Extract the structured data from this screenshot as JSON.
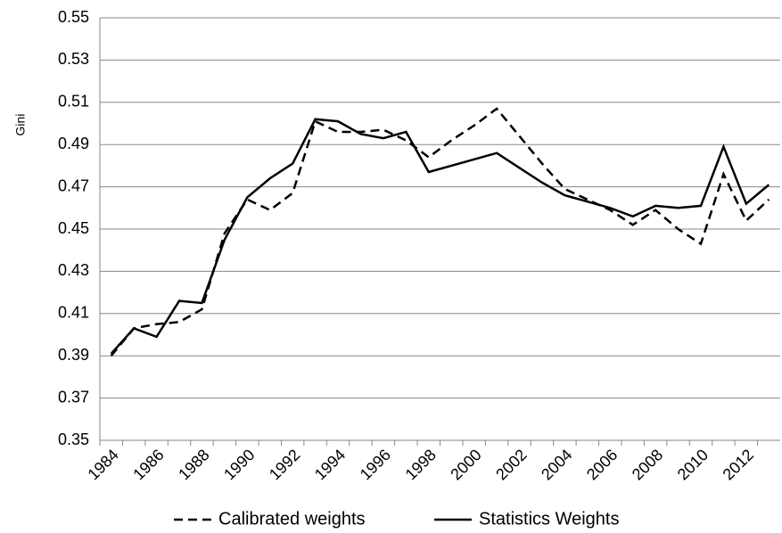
{
  "chart_data": {
    "type": "line",
    "y_label": "Gini",
    "categories": [
      "1984",
      null,
      "1986",
      null,
      "1988",
      null,
      "1990",
      null,
      "1992",
      null,
      "1994",
      null,
      "1996",
      null,
      "1998",
      null,
      "2000",
      null,
      "2002",
      null,
      "2004",
      null,
      "2006",
      null,
      "2008",
      null,
      "2010",
      null,
      "2012",
      null
    ],
    "series": [
      {
        "name": "Calibrated weights",
        "color": "#000000",
        "dash": true,
        "values": [
          0.39,
          0.403,
          0.405,
          0.406,
          0.412,
          0.448,
          0.464,
          0.459,
          0.467,
          0.501,
          0.496,
          0.496,
          0.497,
          0.492,
          0.484,
          0.492,
          0.499,
          0.507,
          0.494,
          0.481,
          0.469,
          0.464,
          0.459,
          0.452,
          0.459,
          0.45,
          0.443,
          0.476,
          0.454,
          0.464
        ]
      },
      {
        "name": "Statistics Weights",
        "color": "#000000",
        "dash": false,
        "values": [
          0.391,
          0.403,
          0.399,
          0.416,
          0.415,
          0.445,
          0.465,
          0.474,
          0.481,
          0.502,
          0.501,
          0.495,
          0.493,
          0.496,
          0.477,
          0.48,
          0.483,
          0.486,
          0.479,
          0.472,
          0.466,
          0.463,
          0.46,
          0.456,
          0.461,
          0.46,
          0.461,
          0.489,
          0.462,
          0.471
        ]
      }
    ],
    "ylim": [
      0.35,
      0.55
    ],
    "yticks": [
      0.35,
      0.37,
      0.39,
      0.41,
      0.43,
      0.45,
      0.47,
      0.49,
      0.51,
      0.53,
      0.55
    ],
    "grid": true,
    "legend": "bottom"
  }
}
